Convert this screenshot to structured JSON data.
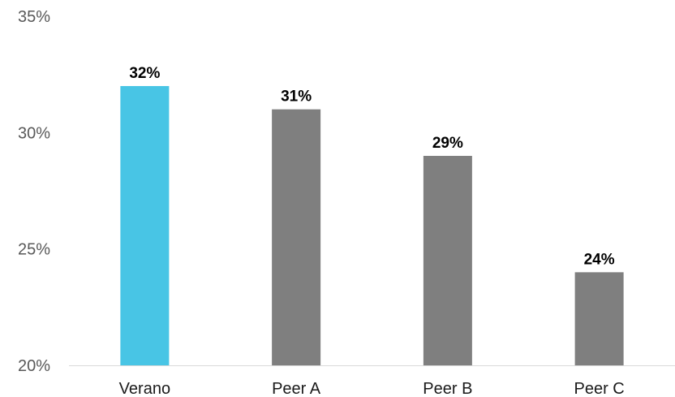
{
  "chart_data": {
    "type": "bar",
    "categories": [
      "Verano",
      "Peer A",
      "Peer B",
      "Peer C"
    ],
    "values": [
      32,
      31,
      29,
      24
    ],
    "data_labels": [
      "32%",
      "31%",
      "29%",
      "24%"
    ],
    "title": "",
    "xlabel": "",
    "ylabel": "",
    "ylim": [
      20,
      35
    ],
    "yticks": [
      20,
      25,
      30,
      35
    ],
    "ytick_labels": [
      "20%",
      "25%",
      "30%",
      "35%"
    ],
    "grid": false,
    "legend": "none",
    "colors": {
      "highlight": "#48C5E5",
      "default": "#7F7F7F",
      "axis": "#D9D9D9"
    }
  }
}
